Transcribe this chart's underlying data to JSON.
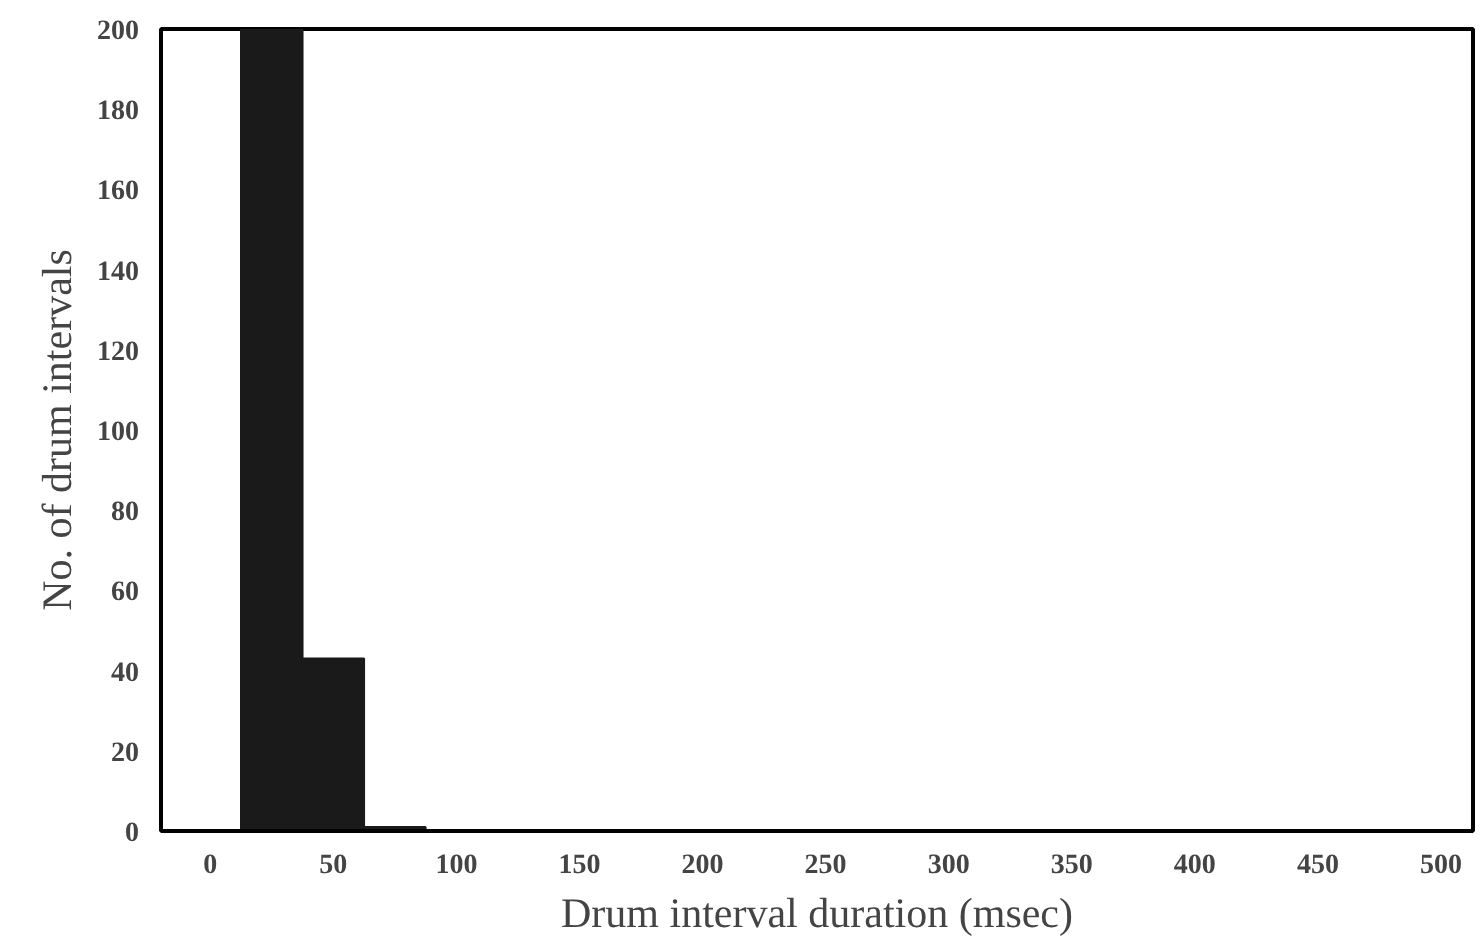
{
  "chart_data": {
    "type": "histogram",
    "xlabel": "Drum interval duration (msec)",
    "ylabel": "No. of drum intervals",
    "bins": [
      12.5,
      37.5,
      62.5,
      87.5
    ],
    "values": [
      200,
      43,
      1
    ],
    "color": "#1a1a1a",
    "xlim": [
      -20,
      513
    ],
    "xticks": [
      0,
      50,
      100,
      150,
      200,
      250,
      300,
      350,
      400,
      450,
      500
    ],
    "ylim": [
      0,
      200
    ],
    "yticks": [
      0,
      20,
      40,
      60,
      80,
      100,
      120,
      140,
      160,
      180,
      200
    ],
    "grid": false
  }
}
